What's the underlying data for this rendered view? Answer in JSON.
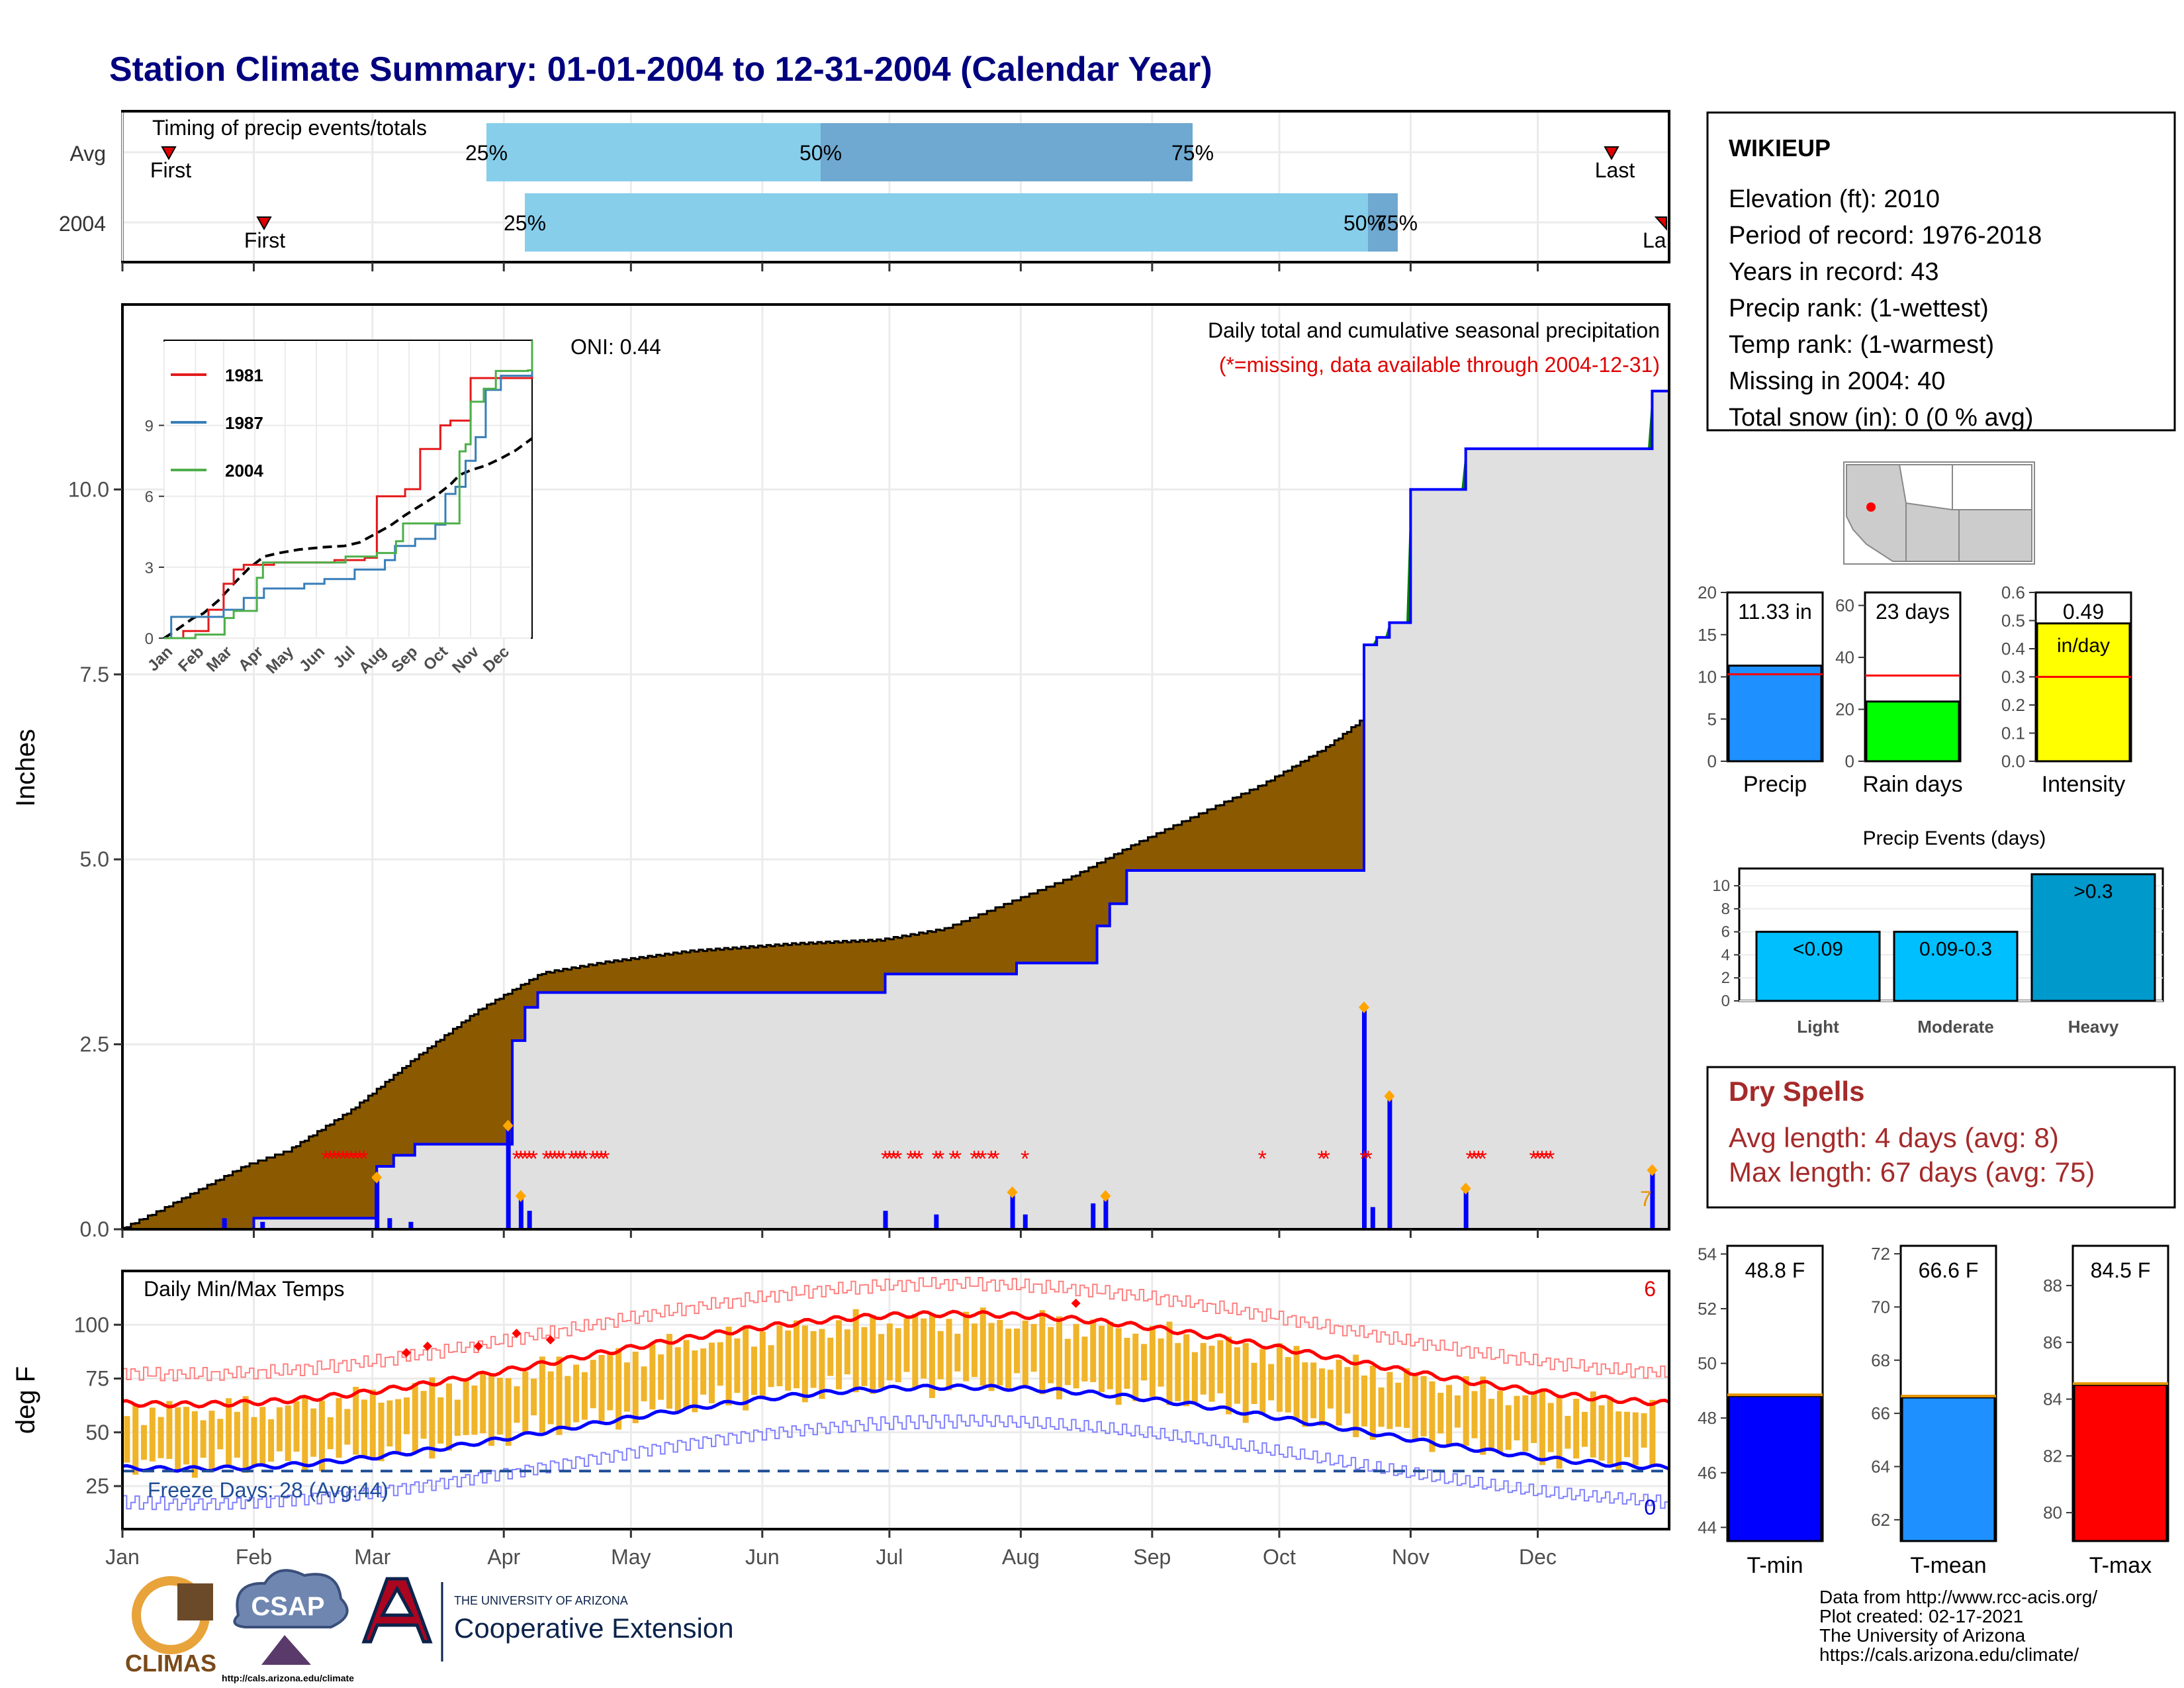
{
  "title": "Station Climate Summary: 01-01-2004 to 12-31-2004 (Calendar Year)",
  "colors": {
    "title": "#00007f",
    "avg_brown": "#8b5a00",
    "above_green": "#008000",
    "cum_fill": "#e0e0e0",
    "precip_blue": "#0000ff",
    "light_blue": "#87ceeb",
    "mid_blue": "#6fa8d0",
    "tmax_red": "#ff0000",
    "tmin_blue": "#0000ff",
    "range_orange": "#f0b429",
    "dry_red": "#a52a2a",
    "yellow": "#ffff00",
    "green_bar": "#00ff00",
    "precip_bar": "#1e90ff",
    "events_bar": "#00bfff",
    "heavy_bar": "#0099cc"
  },
  "timing_panel": {
    "title": "Timing of precip events/totals",
    "rows": [
      {
        "label": "Avg",
        "first": "First",
        "last": "Last",
        "p25": "25%",
        "p50": "50%",
        "p75": "75%"
      },
      {
        "label": "2004",
        "first": "First",
        "last": "La",
        "p25": "25%",
        "p50": "50%",
        "p75": "75%"
      }
    ]
  },
  "main_panel": {
    "ylabel": "Inches",
    "yticks": [
      "0.0",
      "2.5",
      "5.0",
      "7.5",
      "10.0"
    ],
    "oni": "ONI: 0.44",
    "subtitle": "Daily total and cumulative seasonal precipitation",
    "missing_note": "(*=missing, data available through 2004-12-31)",
    "end_label": "7"
  },
  "inset": {
    "legend": [
      "1981",
      "1987",
      "2004"
    ],
    "yticks": [
      "0",
      "3",
      "6",
      "9"
    ],
    "months": [
      "Jan",
      "Feb",
      "Mar",
      "Apr",
      "May",
      "Jun",
      "Jul",
      "Aug",
      "Sep",
      "Oct",
      "Nov",
      "Dec"
    ]
  },
  "temp_panel": {
    "title": "Daily Min/Max Temps",
    "ylabel": "deg F",
    "yticks": [
      "25",
      "50",
      "75",
      "100"
    ],
    "freeze_label": "Freeze Days: 28 (Avg:44)",
    "max_count": "6",
    "min_count": "0"
  },
  "months": [
    "Jan",
    "Feb",
    "Mar",
    "Apr",
    "May",
    "Jun",
    "Jul",
    "Aug",
    "Sep",
    "Oct",
    "Nov",
    "Dec"
  ],
  "station": {
    "name": "WIKIEUP",
    "lines": [
      "Elevation (ft): 2010",
      "Period of record: 1976-2018",
      "Years in record: 43",
      "Precip rank:  (1-wettest)",
      "Temp rank:  (1-warmest)",
      "Missing in 2004: 40",
      "Total snow (in): 0 (0 % avg)"
    ]
  },
  "summary_bars": [
    {
      "name": "Precip",
      "label": "11.33 in",
      "value": 11.33,
      "avg": 10.3,
      "max": 20,
      "ticks": [
        "0",
        "5",
        "10",
        "15",
        "20"
      ]
    },
    {
      "name": "Rain days",
      "label": "23 days",
      "value": 23,
      "avg": 33,
      "max": 65,
      "ticks": [
        "0",
        "20",
        "40",
        "60"
      ]
    },
    {
      "name": "Intensity",
      "label": "0.49",
      "label2": "in/day",
      "value": 0.49,
      "avg": 0.3,
      "max": 0.6,
      "ticks": [
        "0.0",
        "0.1",
        "0.2",
        "0.3",
        "0.4",
        "0.5",
        "0.6"
      ]
    }
  ],
  "events": {
    "title": "Precip Events (days)",
    "yticks": [
      "0",
      "2",
      "4",
      "6",
      "8",
      "10"
    ],
    "bars": [
      {
        "name": "Light",
        "label": "<0.09",
        "value": 6
      },
      {
        "name": "Moderate",
        "label": "0.09-0.3",
        "value": 6
      },
      {
        "name": "Heavy",
        "label": ">0.3",
        "value": 11
      }
    ]
  },
  "dry_spells": {
    "title": "Dry Spells",
    "avg": "Avg length: 4 days (avg: 8)",
    "max": "Max length: 67 days (avg: 75)"
  },
  "temp_bars": [
    {
      "name": "T-min",
      "label": "48.8 F",
      "value": 48.8,
      "min": 43.5,
      "max": 54.3,
      "ticks": [
        "44",
        "46",
        "48",
        "50",
        "52",
        "54"
      ]
    },
    {
      "name": "T-mean",
      "label": "66.6 F",
      "value": 66.6,
      "min": 61.2,
      "max": 72.3,
      "ticks": [
        "62",
        "64",
        "66",
        "68",
        "70",
        "72"
      ]
    },
    {
      "name": "T-max",
      "label": "84.5 F",
      "value": 84.5,
      "min": 79.0,
      "max": 89.4,
      "ticks": [
        "80",
        "82",
        "84",
        "86",
        "88"
      ]
    }
  ],
  "credits": [
    "Data from http://www.rcc-acis.org/",
    "Plot created: 02-17-2021",
    "The University of Arizona",
    "https://cals.arizona.edu/climate/"
  ],
  "logos": {
    "climas": "CLIMAS",
    "csap": "CSAP",
    "csap_url": "http://cals.arizona.edu/climate",
    "ua_small": "THE UNIVERSITY OF ARIZONA",
    "ua_big": "Cooperative Extension"
  },
  "chart_data": {
    "type": "area",
    "title": "Station Climate Summary: 01-01-2004 to 12-31-2004 (Calendar Year)",
    "ylabel": "Inches",
    "ylim": [
      0,
      12.5
    ],
    "cumulative_2004": [
      [
        1,
        0.0
      ],
      [
        25,
        0.0
      ],
      [
        32,
        0.15
      ],
      [
        55,
        0.15
      ],
      [
        61,
        0.85
      ],
      [
        65,
        1.0
      ],
      [
        70,
        1.15
      ],
      [
        91,
        1.15
      ],
      [
        93,
        2.55
      ],
      [
        96,
        3.0
      ],
      [
        99,
        3.2
      ],
      [
        180,
        3.2
      ],
      [
        181,
        3.45
      ],
      [
        211,
        3.45
      ],
      [
        212,
        3.6
      ],
      [
        230,
        3.6
      ],
      [
        231,
        4.1
      ],
      [
        234,
        4.4
      ],
      [
        238,
        4.85
      ],
      [
        293,
        4.85
      ],
      [
        294,
        7.9
      ],
      [
        297,
        8.0
      ],
      [
        300,
        8.2
      ],
      [
        305,
        10.0
      ],
      [
        317,
        10.0
      ],
      [
        318,
        10.55
      ],
      [
        359,
        10.55
      ],
      [
        362,
        11.33
      ],
      [
        366,
        11.33
      ]
    ],
    "cumulative_avg": [
      [
        1,
        0.0
      ],
      [
        10,
        0.25
      ],
      [
        20,
        0.55
      ],
      [
        30,
        0.85
      ],
      [
        40,
        1.05
      ],
      [
        55,
        1.6
      ],
      [
        70,
        2.3
      ],
      [
        85,
        2.95
      ],
      [
        100,
        3.45
      ],
      [
        115,
        3.6
      ],
      [
        135,
        3.75
      ],
      [
        160,
        3.85
      ],
      [
        180,
        3.9
      ],
      [
        195,
        4.05
      ],
      [
        210,
        4.4
      ],
      [
        225,
        4.75
      ],
      [
        240,
        5.2
      ],
      [
        255,
        5.6
      ],
      [
        270,
        6.0
      ],
      [
        285,
        6.5
      ],
      [
        294,
        6.9
      ],
      [
        305,
        7.1
      ],
      [
        320,
        7.3
      ],
      [
        335,
        7.6
      ],
      [
        350,
        7.95
      ],
      [
        366,
        8.45
      ]
    ],
    "daily_precip": [
      [
        25,
        0.15
      ],
      [
        34,
        0.1
      ],
      [
        61,
        0.7
      ],
      [
        64,
        0.15
      ],
      [
        69,
        0.1
      ],
      [
        92,
        1.4
      ],
      [
        95,
        0.45
      ],
      [
        97,
        0.25
      ],
      [
        181,
        0.25
      ],
      [
        193,
        0.2
      ],
      [
        211,
        0.5
      ],
      [
        214,
        0.2
      ],
      [
        230,
        0.35
      ],
      [
        233,
        0.45
      ],
      [
        294,
        3.0
      ],
      [
        296,
        0.3
      ],
      [
        300,
        1.8
      ],
      [
        318,
        0.55
      ],
      [
        362,
        0.8
      ]
    ],
    "temps": {
      "tmax_avg_start": 63,
      "tmax_avg_peak": 105,
      "tmin_avg_start": 33,
      "tmin_avg_peak": 71,
      "freeze_line": 32,
      "ylim": [
        5,
        120
      ]
    }
  }
}
